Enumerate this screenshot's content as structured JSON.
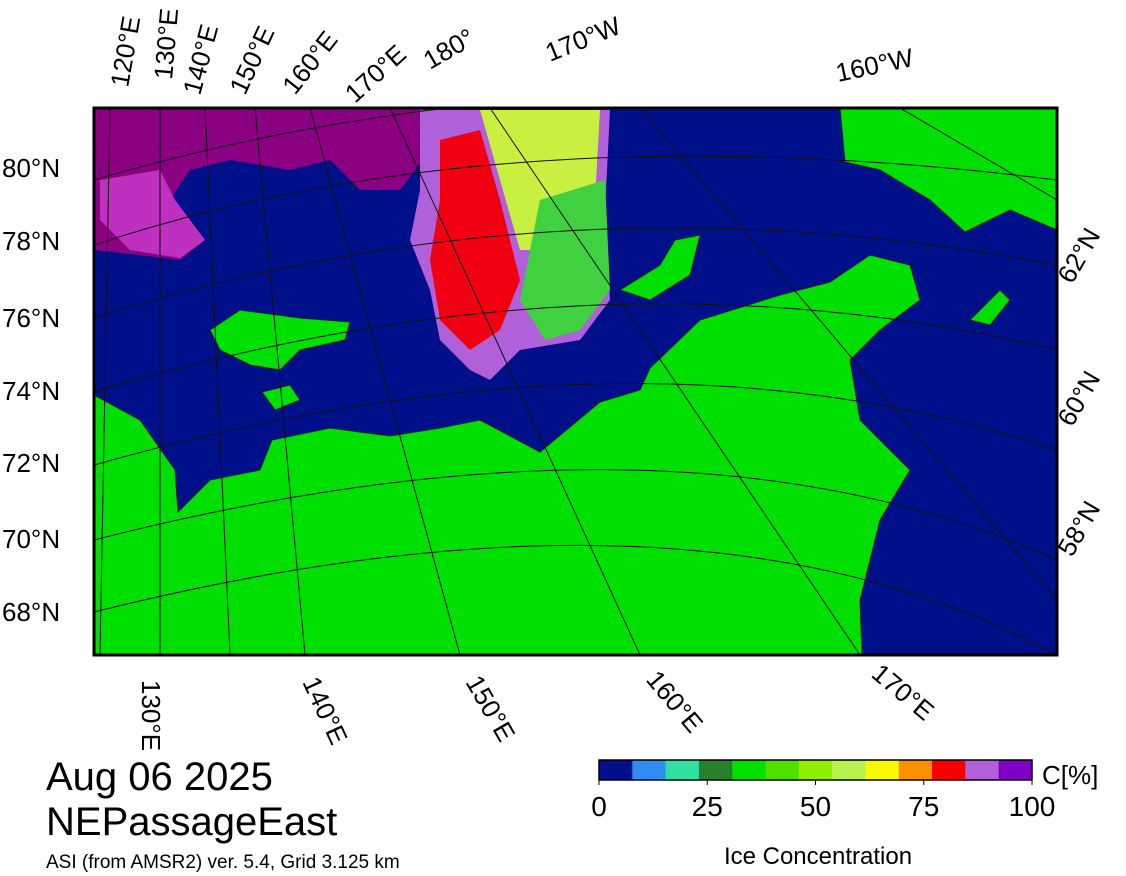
{
  "map": {
    "top_labels": [
      "120°E",
      "130°E",
      "140°E",
      "150°E",
      "160°E",
      "170°E",
      "180°",
      "170°W",
      "160°W"
    ],
    "left_labels": [
      "80°N",
      "78°N",
      "76°N",
      "74°N",
      "72°N",
      "70°N",
      "68°N"
    ],
    "right_labels": [
      "62°N",
      "60°N",
      "58°N"
    ],
    "bottom_labels": [
      "130°E",
      "140°E",
      "150°E",
      "160°E",
      "170°E"
    ]
  },
  "date": "Aug 06 2025",
  "region": "NEPassageEast",
  "source": "ASI (from AMSR2) ver. 5.4,  Grid 3.125 km",
  "colorbar": {
    "colors": [
      "#000f8a",
      "#2f8cf0",
      "#2fe0a0",
      "#2a7f2a",
      "#00e000",
      "#50e000",
      "#90f000",
      "#b8f050",
      "#f8f800",
      "#f89000",
      "#f80000",
      "#b060d8",
      "#8000c8"
    ],
    "lim": [
      0,
      100
    ],
    "ticks": [
      0,
      25,
      50,
      75,
      100
    ],
    "unit": "C[%]",
    "label": "Ice Concentration"
  }
}
